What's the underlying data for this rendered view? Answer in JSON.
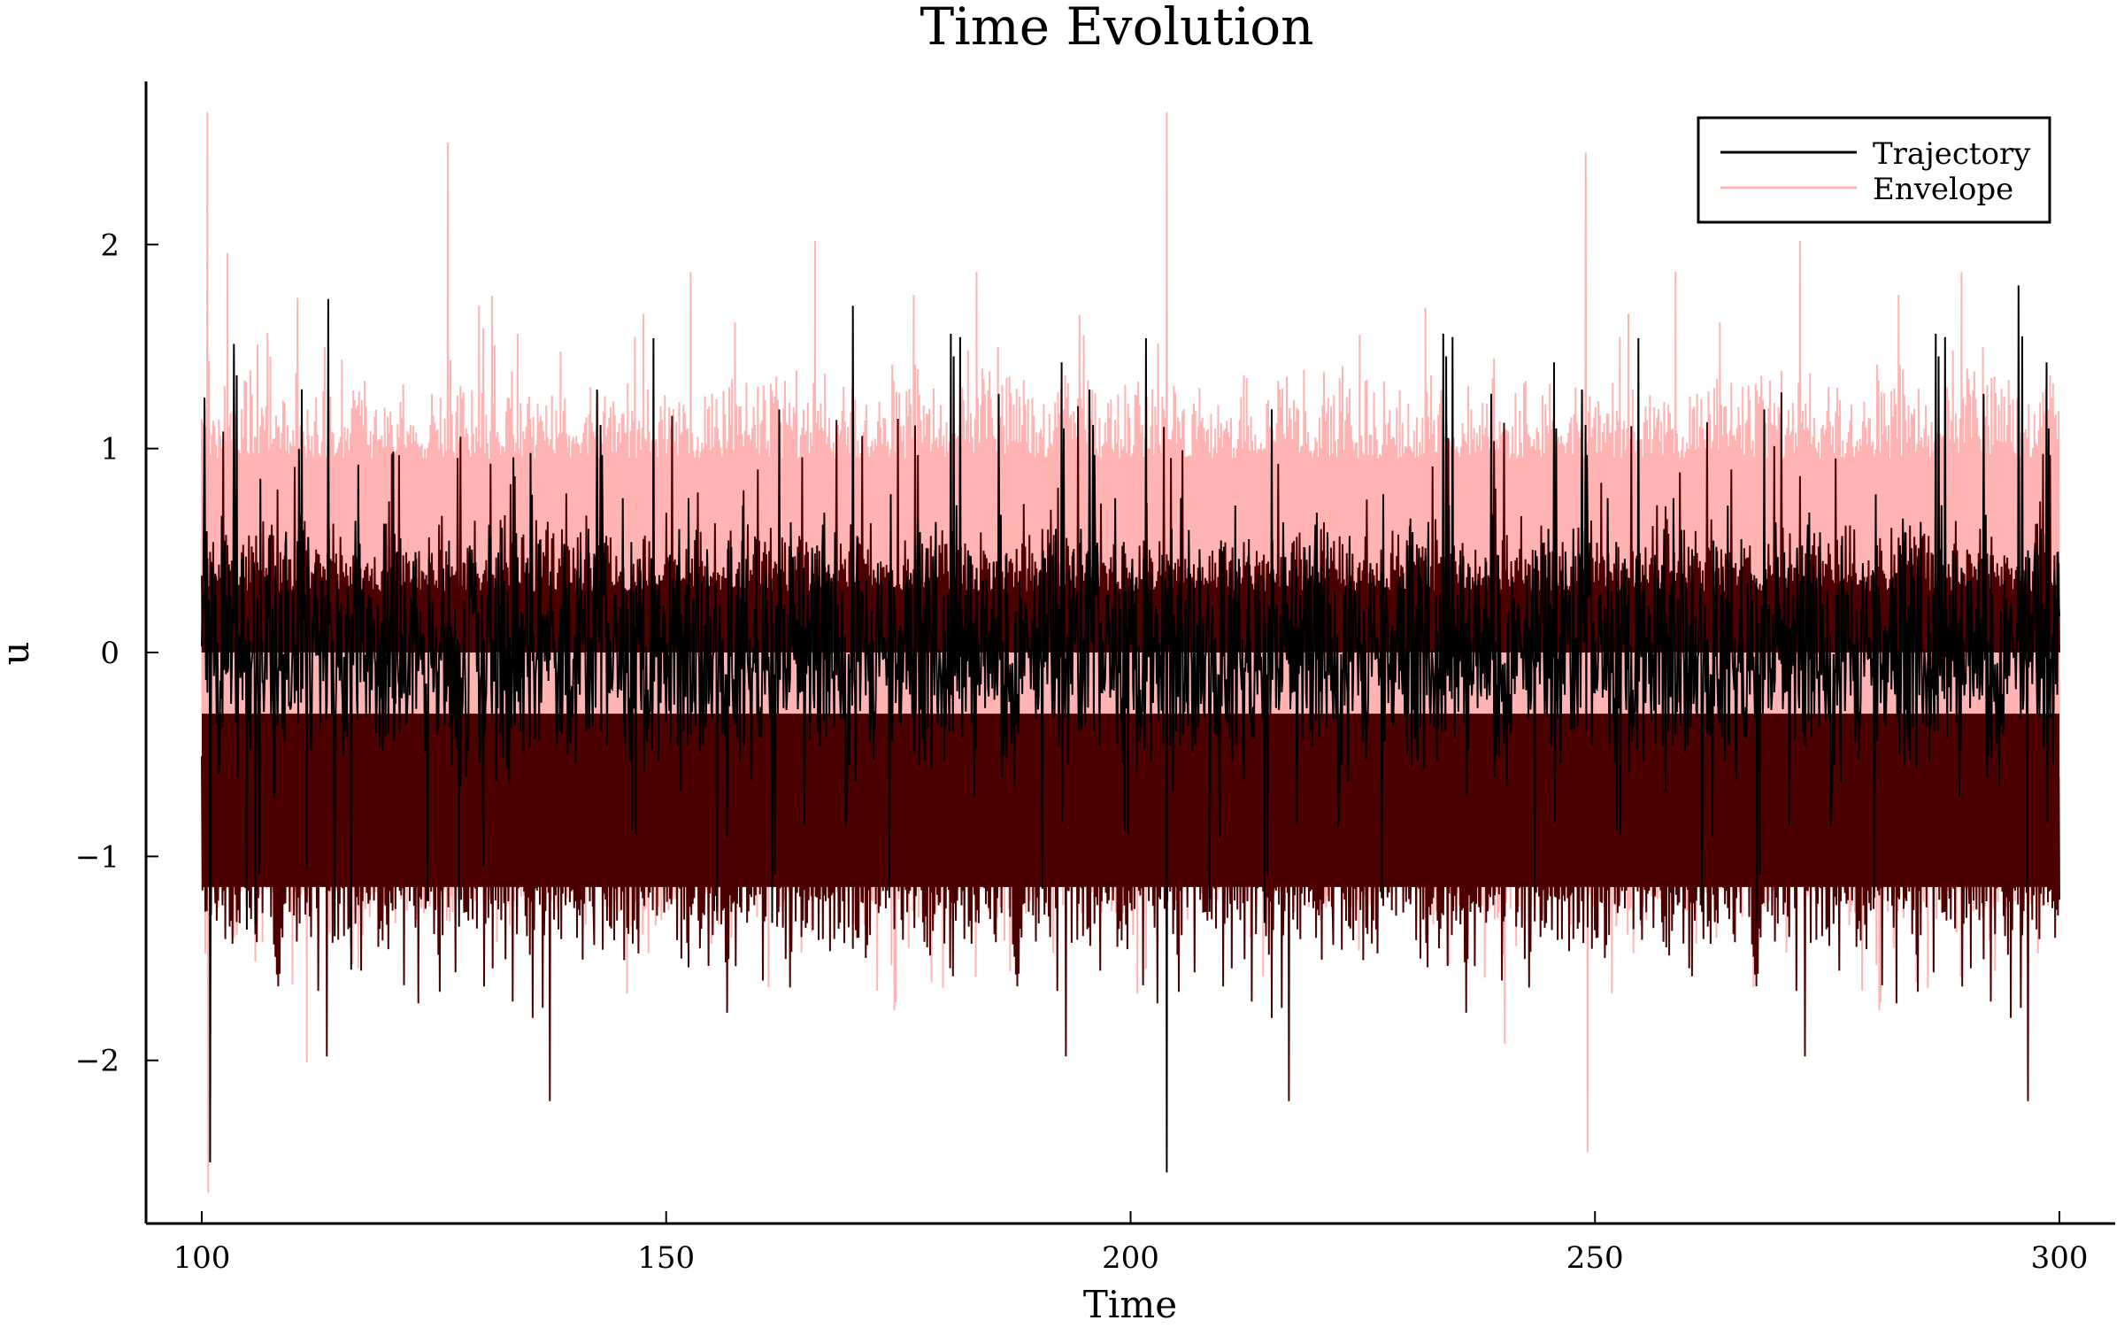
{
  "chart_data": {
    "type": "line",
    "title": "Time Evolution",
    "xlabel": "Time",
    "ylabel": "u",
    "xlim": [
      94,
      306
    ],
    "ylim": [
      -2.8,
      2.8
    ],
    "xticks": [
      100,
      150,
      200,
      250,
      300
    ],
    "xtick_labels": [
      "100",
      "150",
      "200",
      "250",
      "300"
    ],
    "yticks": [
      -2,
      -1,
      0,
      1,
      2
    ],
    "ytick_labels": [
      "−2",
      "−1",
      "0",
      "1",
      "2"
    ],
    "grid": false,
    "legend_position": "top-right",
    "colors": {
      "trajectory": "#000000",
      "envelope": "#ffb3b3",
      "envelope_overlap": "#4d0000"
    },
    "series": [
      {
        "name": "Trajectory",
        "color": "#000000",
        "x_range": [
          100,
          300
        ],
        "typical_center": 0.0,
        "typical_range": [
          -0.5,
          0.5
        ],
        "extremes": [
          {
            "x": 100.3,
            "y": 1.25
          },
          {
            "x": 100.9,
            "y": -2.5
          },
          {
            "x": 170.1,
            "y": 1.7
          },
          {
            "x": 203.9,
            "y": -2.55
          },
          {
            "x": 295.6,
            "y": 1.8
          },
          {
            "x": 296.0,
            "y": 1.55
          }
        ]
      },
      {
        "name": "Envelope",
        "color": "#ffb3b3",
        "x_range": [
          100,
          300
        ],
        "upper_band_typical": [
          0.4,
          1.8
        ],
        "lower_band_typical": [
          -1.8,
          -0.4
        ],
        "extremes": [
          {
            "x": 100.6,
            "y": 2.65
          },
          {
            "x": 100.7,
            "y": -2.65
          },
          {
            "x": 126.5,
            "y": 2.5
          },
          {
            "x": 203.9,
            "y": 2.65
          },
          {
            "x": 249.0,
            "y": 2.45
          },
          {
            "x": 249.2,
            "y": -2.45
          }
        ]
      }
    ]
  }
}
